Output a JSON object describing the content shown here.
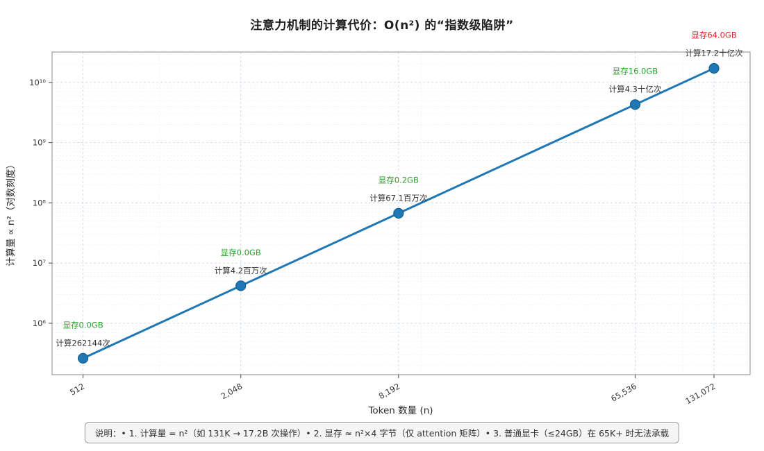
{
  "title": "注意力机制的计算代价：O(n²) 的“指数级陷阱”",
  "xlabel": "Token 数量 (n)",
  "ylabel": "计算量 ∝ n²（对数刻度）",
  "footer": "说明：• 1. 计算量 = n²（如 131K → 17.2B 次操作）• 2. 显存 ≈ n²×4 字节（仅 attention 矩阵）• 3. 普通显卡（≤24GB）在 65K+ 时无法承载",
  "chart_data": {
    "type": "line",
    "xscale": "log",
    "yscale": "log",
    "x": [
      512,
      2048,
      8192,
      65536,
      131072
    ],
    "x_tick_labels": [
      "512",
      "2,048",
      "8,192",
      "65,536",
      "131,072"
    ],
    "y": [
      262144,
      4194304,
      67108864,
      4294967296,
      17179869184
    ],
    "y_ticks": [
      1000000,
      10000000,
      100000000,
      1000000000,
      10000000000
    ],
    "y_tick_labels": [
      "10⁶",
      "10⁷",
      "10⁸",
      "10⁹",
      "10¹⁰"
    ],
    "x_minor_grid": [
      1000,
      10000,
      100000
    ],
    "xlim": [
      390,
      180000
    ],
    "ylim": [
      140000,
      32000000000
    ],
    "grid": true,
    "legend": "none",
    "line_color": "#1f77b4",
    "marker_edge_color": "#15608f",
    "annotation_compute_color": "#333333",
    "annotations": [
      {
        "x": 512,
        "compute": "计算262144次",
        "memory": "显存0.0GB",
        "memory_color": "#2ca02c"
      },
      {
        "x": 2048,
        "compute": "计算4.2百万次",
        "memory": "显存0.0GB",
        "memory_color": "#2ca02c"
      },
      {
        "x": 8192,
        "compute": "计算67.1百万次",
        "memory": "显存0.2GB",
        "memory_color": "#2ca02c"
      },
      {
        "x": 65536,
        "compute": "计算4.3十亿次",
        "memory": "显存16.0GB",
        "memory_color": "#2ca02c"
      },
      {
        "x": 131072,
        "compute": "计算17.2十亿次",
        "memory": "显存64.0GB",
        "memory_color": "#d62728"
      }
    ]
  }
}
